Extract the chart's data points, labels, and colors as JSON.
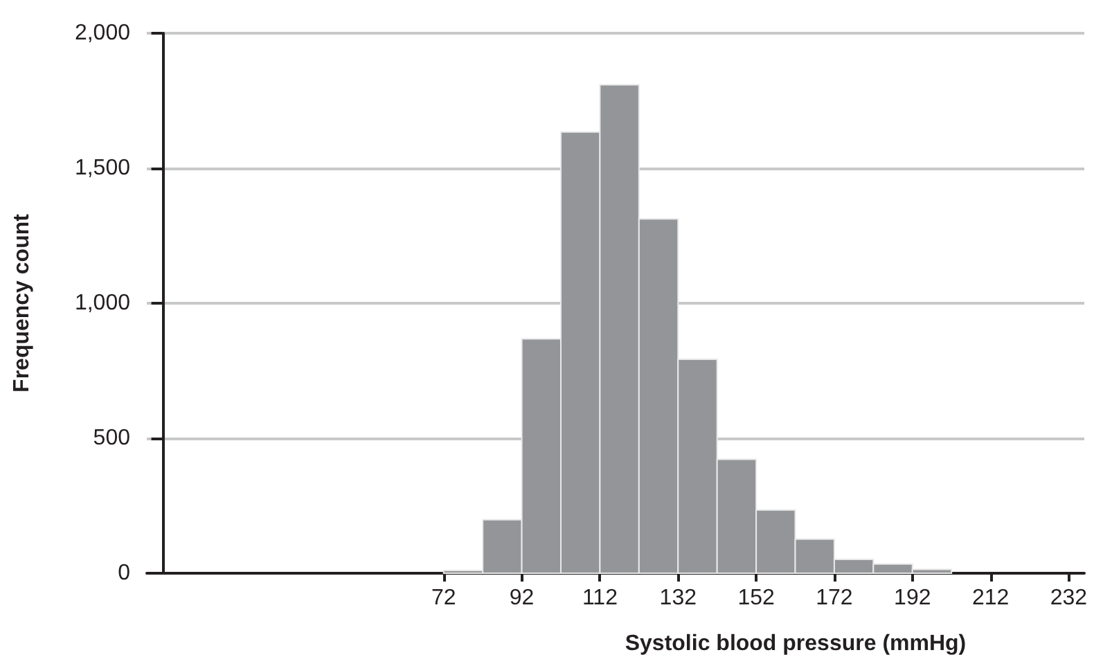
{
  "chart_data": {
    "type": "histogram",
    "xlabel": "Systolic blood pressure (mmHg)",
    "ylabel": "Frequency count",
    "bins": [
      72,
      82,
      92,
      102,
      112,
      122,
      132,
      142,
      152,
      162,
      172,
      182,
      192,
      202
    ],
    "values": [
      10,
      198,
      868,
      1634,
      1809,
      1312,
      792,
      422,
      234,
      126,
      51,
      34,
      14
    ],
    "color": "#939598",
    "xlim": [
      -4,
      236
    ],
    "xticks": [
      72,
      92,
      112,
      132,
      152,
      172,
      192,
      212,
      232
    ],
    "ylim": [
      0,
      2000
    ],
    "yticks": [
      {
        "value": 0,
        "label": "0"
      },
      {
        "value": 500,
        "label": "500"
      },
      {
        "value": 1000,
        "label": "1,000"
      },
      {
        "value": 1500,
        "label": "1,500"
      },
      {
        "value": 2000,
        "label": "2,000"
      }
    ],
    "grid": "y"
  }
}
